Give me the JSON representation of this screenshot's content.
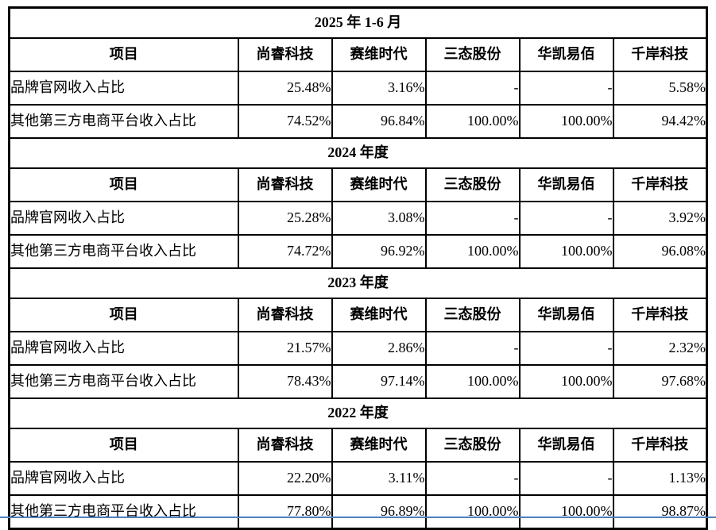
{
  "page": {
    "bottom_rule_color": "#4f81bd",
    "border_color": "#000000",
    "text_color": "#000000"
  },
  "table": {
    "item_header": "项目",
    "companies": [
      "尚睿科技",
      "赛维时代",
      "三态股份",
      "华凯易佰",
      "千岸科技"
    ],
    "sections": [
      {
        "title": "2025 年 1-6 月",
        "rows": [
          {
            "label": "品牌官网收入占比",
            "values": [
              "25.48%",
              "3.16%",
              "-",
              "-",
              "5.58%"
            ]
          },
          {
            "label": "其他第三方电商平台收入占比",
            "values": [
              "74.52%",
              "96.84%",
              "100.00%",
              "100.00%",
              "94.42%"
            ]
          }
        ]
      },
      {
        "title": "2024 年度",
        "rows": [
          {
            "label": "品牌官网收入占比",
            "values": [
              "25.28%",
              "3.08%",
              "-",
              "-",
              "3.92%"
            ]
          },
          {
            "label": "其他第三方电商平台收入占比",
            "values": [
              "74.72%",
              "96.92%",
              "100.00%",
              "100.00%",
              "96.08%"
            ]
          }
        ]
      },
      {
        "title": "2023 年度",
        "rows": [
          {
            "label": "品牌官网收入占比",
            "values": [
              "21.57%",
              "2.86%",
              "-",
              "-",
              "2.32%"
            ]
          },
          {
            "label": "其他第三方电商平台收入占比",
            "values": [
              "78.43%",
              "97.14%",
              "100.00%",
              "100.00%",
              "97.68%"
            ]
          }
        ]
      },
      {
        "title": "2022 年度",
        "rows": [
          {
            "label": "品牌官网收入占比",
            "values": [
              "22.20%",
              "3.11%",
              "-",
              "-",
              "1.13%"
            ]
          },
          {
            "label": "其他第三方电商平台收入占比",
            "values": [
              "77.80%",
              "96.89%",
              "100.00%",
              "100.00%",
              "98.87%"
            ]
          }
        ]
      }
    ]
  }
}
